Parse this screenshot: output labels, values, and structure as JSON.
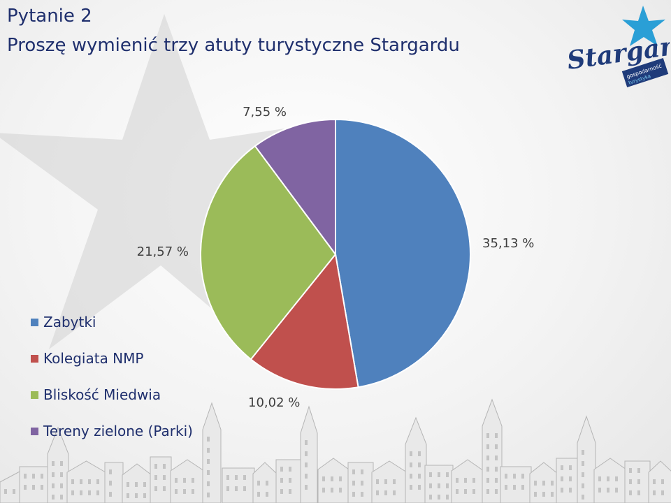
{
  "slide": {
    "title_line1": "Pytanie 2",
    "title_line2": "Proszę wymienić trzy atuty turystyczne Stargardu"
  },
  "logo": {
    "wordmark": "Stargard",
    "tagline": "gospodarność",
    "subline": "turystyka",
    "star_color": "#2a9fd6",
    "wordmark_color": "#1f3b7a"
  },
  "chart_data": {
    "type": "pie",
    "categories": [
      "Zabytki",
      "Kolegiata NMP",
      "Bliskość Miedwia",
      "Tereny zielone (Parki)"
    ],
    "values": [
      35.13,
      10.02,
      21.57,
      7.55
    ],
    "labels": [
      "35,13 %",
      "10,02 %",
      "21,57 %",
      "7,55 %"
    ],
    "colors": [
      "#4f81bd",
      "#c0504d",
      "#9bbb59",
      "#8064a2"
    ],
    "start_angle_deg": 0,
    "direction": "clockwise",
    "legend_position": "left"
  }
}
